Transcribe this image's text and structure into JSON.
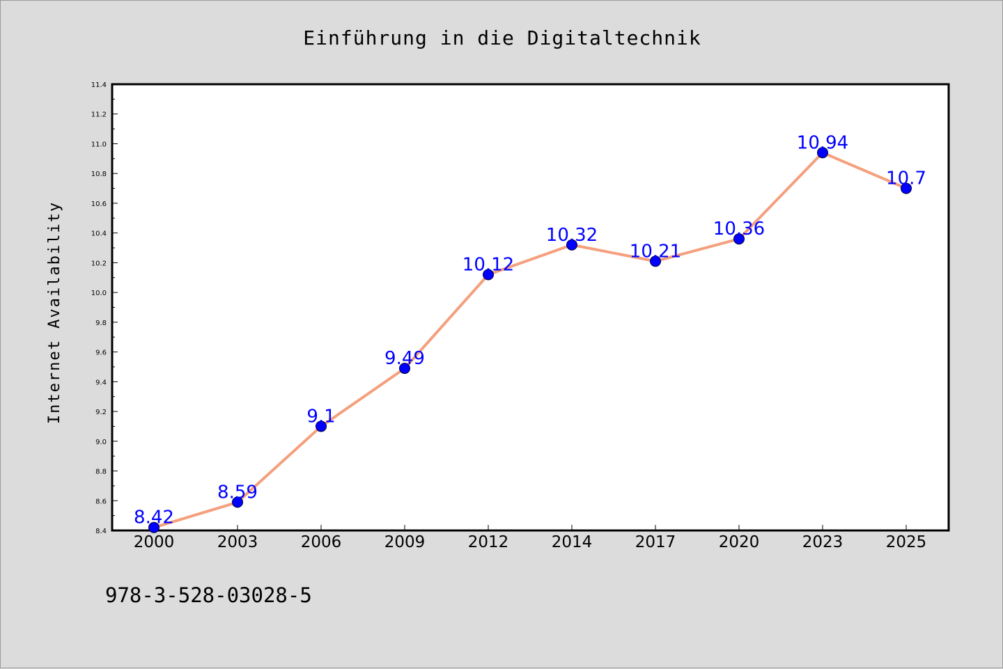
{
  "chart_data": {
    "type": "line",
    "title": "Einführung in die Digitaltechnik",
    "xlabel": "",
    "ylabel": "Internet Availability",
    "categories": [
      "2000",
      "2003",
      "2006",
      "2009",
      "2012",
      "2014",
      "2017",
      "2020",
      "2023",
      "2025"
    ],
    "series": [
      {
        "values": [
          8.42,
          8.59,
          9.1,
          9.49,
          10.12,
          10.32,
          10.21,
          10.36,
          10.94,
          10.7
        ],
        "data_labels": [
          "8.42",
          "8.59",
          "9.1",
          "9.49",
          "10.12",
          "10.32",
          "10.21",
          "10.36",
          "10.94",
          "10.7"
        ],
        "line_color": "#f4a07e",
        "marker_color": "#0000ff"
      }
    ],
    "ylim": [
      8.4,
      11.4
    ],
    "yticks": [
      "8.4",
      "8.6",
      "8.8",
      "9.0",
      "9.2",
      "9.4",
      "9.6",
      "9.8",
      "10.0",
      "10.2",
      "10.4",
      "10.6",
      "10.8",
      "11.0",
      "11.2",
      "11.4"
    ],
    "grid": false,
    "legend": "none"
  },
  "footer": {
    "isbn": "978-3-528-03028-5"
  },
  "colors": {
    "background": "#dcdcdc",
    "plot_background": "#ffffff",
    "line": "#f4a07e",
    "marker": "#0000ff",
    "data_label": "#0000ff"
  }
}
